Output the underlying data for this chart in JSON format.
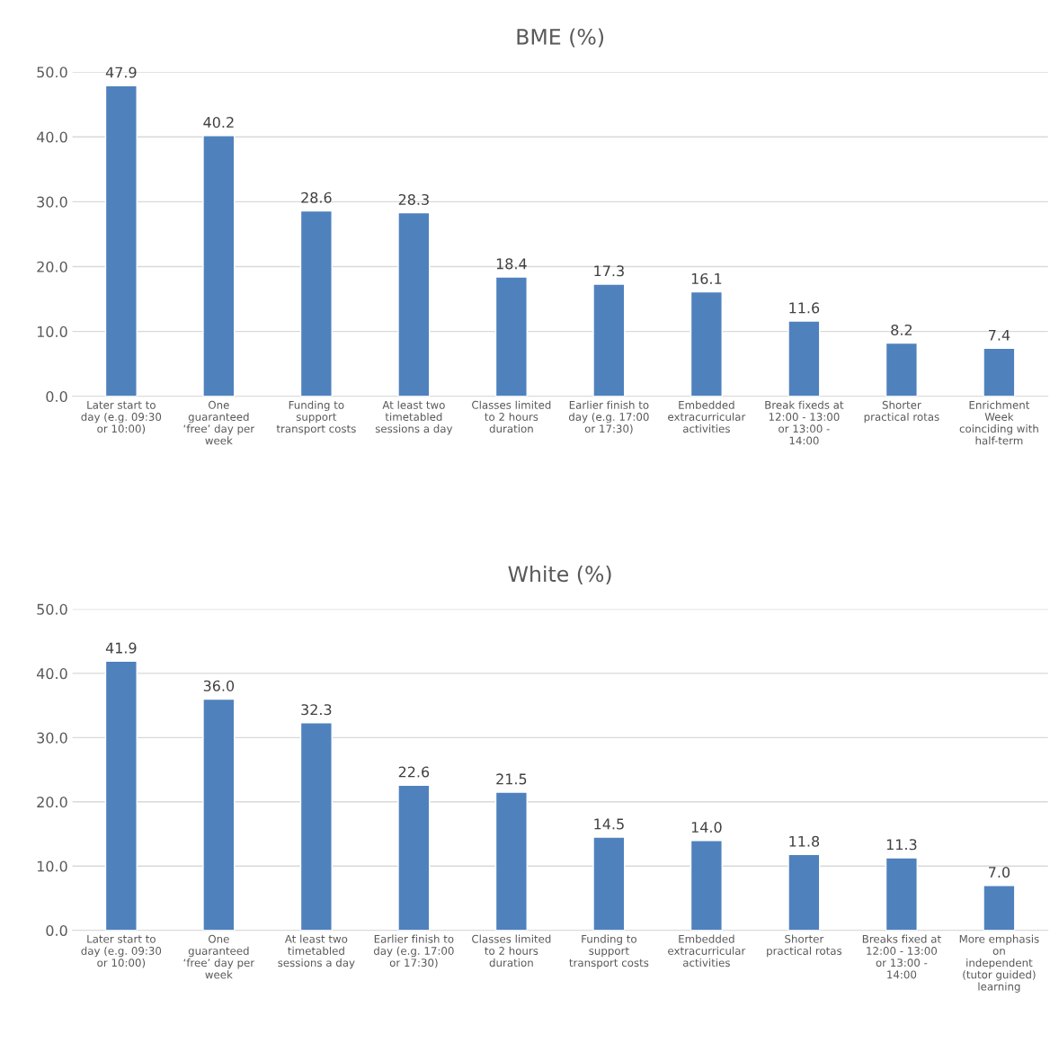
{
  "chart_data": [
    {
      "type": "bar",
      "title": "BME (%)",
      "categories": [
        "Later start to\nday (e.g. 09:30\nor 10:00)",
        "One\nguaranteed\n‘free’ day per\nweek",
        "Funding to\nsupport\ntransport costs",
        "At least two\ntimetabled\nsessions a day",
        "Classes limited\nto 2 hours\nduration",
        "Earlier finish to\nday (e.g. 17:00\nor 17:30)",
        "Embedded\nextracurricular\nactivities",
        "Break fixeds at\n12:00 - 13:00\nor 13:00 -\n14:00",
        "Shorter\npractical rotas",
        "Enrichment\nWeek\ncoinciding with\nhalf-term"
      ],
      "values": [
        47.9,
        40.2,
        28.6,
        28.3,
        18.4,
        17.3,
        16.1,
        11.6,
        8.2,
        7.4
      ],
      "value_labels": [
        "47.9",
        "40.2",
        "28.6",
        "28.3",
        "18.4",
        "17.3",
        "16.1",
        "11.6",
        "8.2",
        "7.4"
      ],
      "color": "#4f81bd",
      "ylim": [
        0,
        50
      ],
      "yticks": [
        {
          "value": 0,
          "label": "0.0"
        },
        {
          "value": 10,
          "label": "10.0"
        },
        {
          "value": 20,
          "label": "20.0"
        },
        {
          "value": 30,
          "label": "30.0"
        },
        {
          "value": 40,
          "label": "40.0"
        },
        {
          "value": 50,
          "label": "50.0"
        }
      ],
      "grid": "y"
    },
    {
      "type": "bar",
      "title": "White (%)",
      "categories": [
        "Later start to\nday (e.g. 09:30\nor 10:00)",
        "One\nguaranteed\n‘free’ day per\nweek",
        "At least two\ntimetabled\nsessions a day",
        "Earlier finish to\nday (e.g. 17:00\nor 17:30)",
        "Classes limited\nto 2 hours\nduration",
        "Funding to\nsupport\ntransport costs",
        "Embedded\nextracurricular\nactivities",
        "Shorter\npractical rotas",
        "Breaks fixed at\n12:00 - 13:00\nor 13:00 -\n14:00",
        "More emphasis\non\nindependent\n(tutor guided)\nlearning"
      ],
      "values": [
        41.9,
        36.0,
        32.3,
        22.6,
        21.5,
        14.5,
        14.0,
        11.8,
        11.3,
        7.0
      ],
      "value_labels": [
        "41.9",
        "36.0",
        "32.3",
        "22.6",
        "21.5",
        "14.5",
        "14.0",
        "11.8",
        "11.3",
        "7.0"
      ],
      "color": "#4f81bd",
      "ylim": [
        0,
        50
      ],
      "yticks": [
        {
          "value": 0,
          "label": "0.0"
        },
        {
          "value": 10,
          "label": "10.0"
        },
        {
          "value": 20,
          "label": "20.0"
        },
        {
          "value": 30,
          "label": "30.0"
        },
        {
          "value": 40,
          "label": "40.0"
        },
        {
          "value": 50,
          "label": "50.0"
        }
      ],
      "grid": "y"
    }
  ]
}
